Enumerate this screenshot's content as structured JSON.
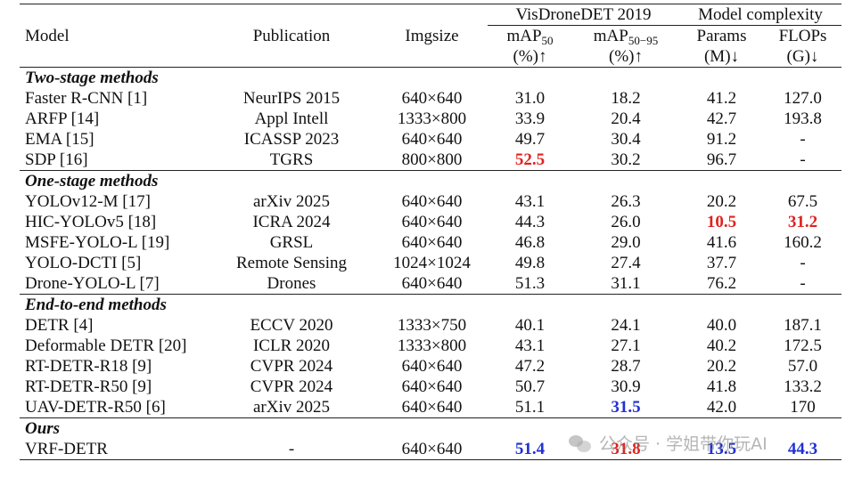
{
  "header": {
    "model": "Model",
    "publication": "Publication",
    "imgsize": "Imgsize",
    "visdrone": "VisDroneDET 2019",
    "complexity": "Model complexity",
    "map50_a": "mAP",
    "map50_sub": "50",
    "map50_b": "(%)↑",
    "map5095_a": "mAP",
    "map5095_sub": "50−95",
    "map5095_b": "(%)↑",
    "params_a": "Params",
    "params_b": "(M)↓",
    "flops_a": "FLOPs",
    "flops_b": "(G)↓"
  },
  "sections": [
    {
      "title": "Two-stage methods",
      "rows": [
        {
          "model": "Faster R-CNN [1]",
          "pub": "NeurIPS 2015",
          "img": "640×640",
          "map50": "31.0",
          "map5095": "18.2",
          "params": "41.2",
          "flops": "127.0"
        },
        {
          "model": "ARFP [14]",
          "pub": "Appl Intell",
          "img": "1333×800",
          "map50": "33.9",
          "map5095": "20.4",
          "params": "42.7",
          "flops": "193.8"
        },
        {
          "model": "EMA [15]",
          "pub": "ICASSP 2023",
          "img": "640×640",
          "map50": "49.7",
          "map5095": "30.4",
          "params": "91.2",
          "flops": "-"
        },
        {
          "model": "SDP [16]",
          "pub": "TGRS",
          "img": "800×800",
          "map50": "52.5",
          "map5095": "30.2",
          "params": "96.7",
          "flops": "-"
        }
      ]
    },
    {
      "title": "One-stage methods",
      "rows": [
        {
          "model": "YOLOv12-M [17]",
          "pub": "arXiv 2025",
          "img": "640×640",
          "map50": "43.1",
          "map5095": "26.3",
          "params": "20.2",
          "flops": "67.5"
        },
        {
          "model": "HIC-YOLOv5 [18]",
          "pub": "ICRA 2024",
          "img": "640×640",
          "map50": "44.3",
          "map5095": "26.0",
          "params": "10.5",
          "flops": "31.2"
        },
        {
          "model": "MSFE-YOLO-L [19]",
          "pub": "GRSL",
          "img": "640×640",
          "map50": "46.8",
          "map5095": "29.0",
          "params": "41.6",
          "flops": "160.2"
        },
        {
          "model": "YOLO-DCTI [5]",
          "pub": "Remote Sensing",
          "img": "1024×1024",
          "map50": "49.8",
          "map5095": "27.4",
          "params": "37.7",
          "flops": "-"
        },
        {
          "model": "Drone-YOLO-L [7]",
          "pub": "Drones",
          "img": "640×640",
          "map50": "51.3",
          "map5095": "31.1",
          "params": "76.2",
          "flops": "-"
        }
      ]
    },
    {
      "title": "End-to-end methods",
      "rows": [
        {
          "model": "DETR [4]",
          "pub": "ECCV 2020",
          "img": "1333×750",
          "map50": "40.1",
          "map5095": "24.1",
          "params": "40.0",
          "flops": "187.1"
        },
        {
          "model": "Deformable DETR [20]",
          "pub": "ICLR 2020",
          "img": "1333×800",
          "map50": "43.1",
          "map5095": "27.1",
          "params": "40.2",
          "flops": "172.5"
        },
        {
          "model": "RT-DETR-R18 [9]",
          "pub": "CVPR 2024",
          "img": "640×640",
          "map50": "47.2",
          "map5095": "28.7",
          "params": "20.2",
          "flops": "57.0"
        },
        {
          "model": "RT-DETR-R50 [9]",
          "pub": "CVPR 2024",
          "img": "640×640",
          "map50": "50.7",
          "map5095": "30.9",
          "params": "41.8",
          "flops": "133.2"
        },
        {
          "model": "UAV-DETR-R50 [6]",
          "pub": "arXiv 2025",
          "img": "640×640",
          "map50": "51.1",
          "map5095": "31.5",
          "params": "42.0",
          "flops": "170"
        }
      ]
    },
    {
      "title": "Ours",
      "rows": [
        {
          "model": "VRF-DETR",
          "pub": "-",
          "img": "640×640",
          "map50": "51.4",
          "map5095": "31.8",
          "params": "13.5",
          "flops": "44.3"
        }
      ]
    }
  ],
  "highlights": {
    "red": "#e0231f",
    "blue": "#1f2fd6"
  },
  "watermark": {
    "text": "公众号 · 学姐带你玩AI",
    "icon": "wechat-icon"
  }
}
